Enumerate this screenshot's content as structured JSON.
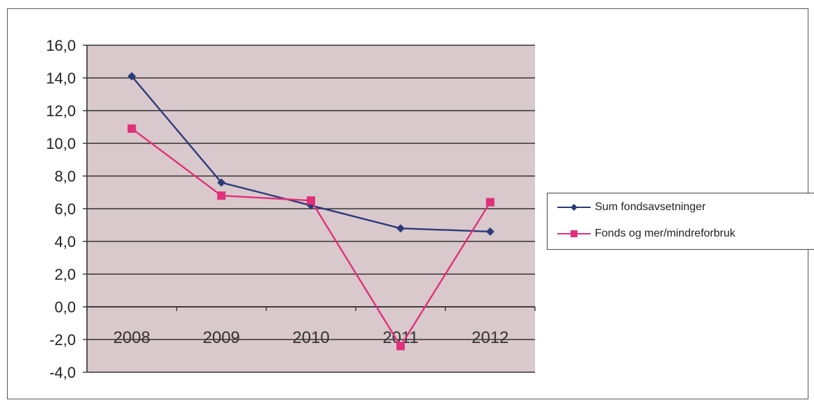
{
  "chart_data": {
    "type": "line",
    "title": "",
    "xlabel": "",
    "ylabel": "",
    "categories": [
      "2008",
      "2009",
      "2010",
      "2011",
      "2012"
    ],
    "ylim": [
      -4,
      16
    ],
    "yticks": [
      "-4,0",
      "-2,0",
      "0,0",
      "2,0",
      "4,0",
      "6,0",
      "8,0",
      "10,0",
      "12,0",
      "14,0",
      "16,0"
    ],
    "grid": true,
    "legend_position": "right",
    "series": [
      {
        "name": "Sum fondsavsetninger",
        "values": [
          14.1,
          7.6,
          6.2,
          4.8,
          4.6
        ],
        "color": "#2b3a7a",
        "marker": "diamond"
      },
      {
        "name": "Fonds og mer/mindreforbruk",
        "values": [
          10.9,
          6.8,
          6.5,
          -2.4,
          6.4
        ],
        "color": "#e0307a",
        "marker": "square"
      }
    ],
    "plot_background": "#d9c8cc"
  }
}
